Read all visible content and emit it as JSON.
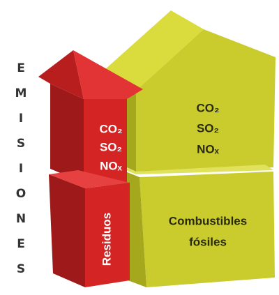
{
  "label": "EMISIONES",
  "red_column": {
    "upper": {
      "lines": [
        "CO₂",
        "SO₂",
        "NOₓ"
      ]
    },
    "lower": {
      "label": "Residuos"
    }
  },
  "yellow_house": {
    "upper": {
      "lines": [
        "CO₂",
        "SO₂",
        "NOₓ"
      ]
    },
    "lower": {
      "lines": [
        "Combustibles",
        "fósiles"
      ]
    }
  }
}
